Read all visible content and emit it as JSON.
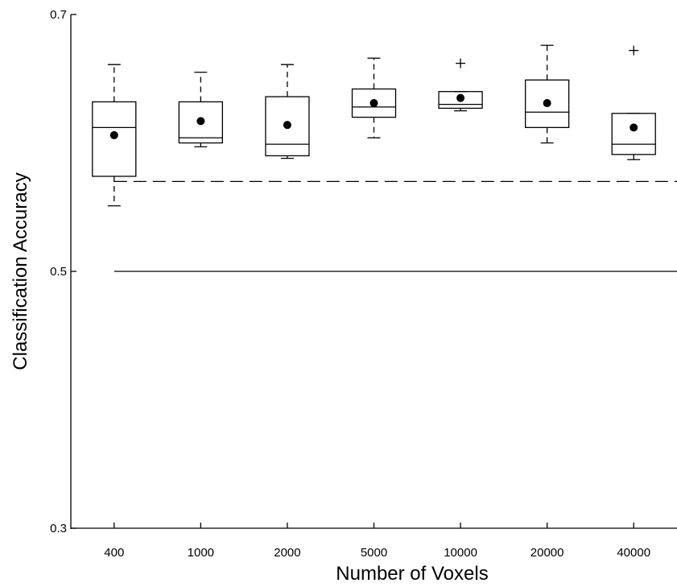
{
  "chart_data": {
    "type": "box",
    "xlabel": "Number of Voxels",
    "ylabel": "Classification Accuracy",
    "ylim": [
      0.3,
      0.7
    ],
    "yticks": [
      0.3,
      0.5,
      0.7
    ],
    "ytick_labels": [
      "0.3",
      "0.5",
      "0.7"
    ],
    "categories": [
      "400",
      "1000",
      "2000",
      "5000",
      "10000",
      "20000",
      "40000"
    ],
    "boxes": [
      {
        "whisker_low": 0.551,
        "q1": 0.574,
        "median": 0.612,
        "q3": 0.632,
        "whisker_high": 0.661,
        "mean": 0.606,
        "outliers": []
      },
      {
        "whisker_low": 0.597,
        "q1": 0.6,
        "median": 0.604,
        "q3": 0.632,
        "whisker_high": 0.655,
        "mean": 0.617,
        "outliers": []
      },
      {
        "whisker_low": 0.588,
        "q1": 0.59,
        "median": 0.599,
        "q3": 0.636,
        "whisker_high": 0.661,
        "mean": 0.614,
        "outliers": []
      },
      {
        "whisker_low": 0.604,
        "q1": 0.62,
        "median": 0.628,
        "q3": 0.642,
        "whisker_high": 0.666,
        "mean": 0.631,
        "outliers": []
      },
      {
        "whisker_low": 0.625,
        "q1": 0.627,
        "median": 0.63,
        "q3": 0.64,
        "whisker_high": 0.64,
        "mean": 0.635,
        "outliers": [
          0.662
        ]
      },
      {
        "whisker_low": 0.6,
        "q1": 0.612,
        "median": 0.624,
        "q3": 0.649,
        "whisker_high": 0.676,
        "mean": 0.631,
        "outliers": []
      },
      {
        "whisker_low": 0.587,
        "q1": 0.591,
        "median": 0.599,
        "q3": 0.623,
        "whisker_high": 0.623,
        "mean": 0.612,
        "outliers": [
          0.672
        ]
      }
    ],
    "reference_lines": [
      {
        "style": "dashed",
        "value": 0.57
      },
      {
        "style": "solid",
        "value": 0.5
      }
    ],
    "legend": "none",
    "grid": false
  }
}
